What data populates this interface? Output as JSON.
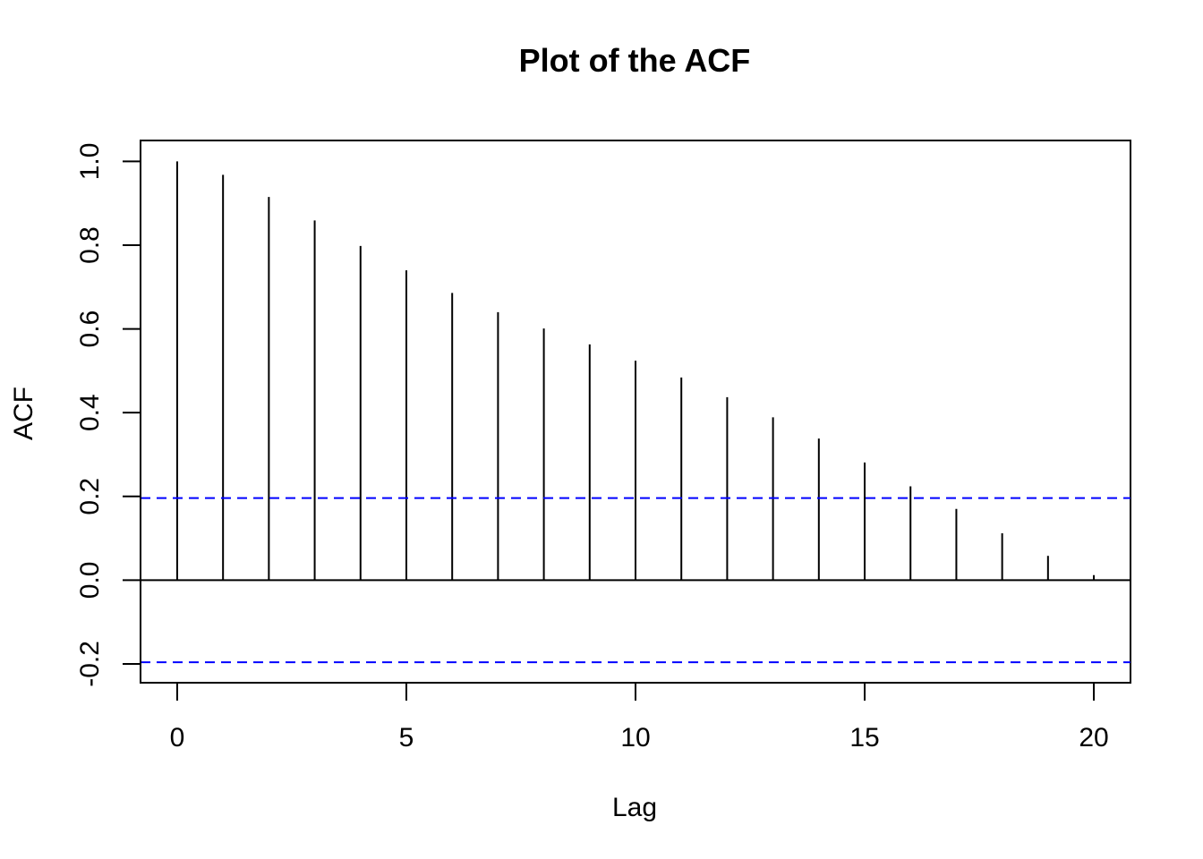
{
  "chart_data": {
    "type": "bar",
    "title": "Plot of the ACF",
    "xlabel": "Lag",
    "ylabel": "ACF",
    "x": [
      0,
      1,
      2,
      3,
      4,
      5,
      6,
      7,
      8,
      9,
      10,
      11,
      12,
      13,
      14,
      15,
      16,
      17,
      18,
      19,
      20
    ],
    "values": [
      1.0,
      0.968,
      0.915,
      0.859,
      0.798,
      0.74,
      0.686,
      0.64,
      0.601,
      0.563,
      0.524,
      0.484,
      0.437,
      0.389,
      0.338,
      0.281,
      0.224,
      0.17,
      0.112,
      0.058,
      0.012
    ],
    "xlim": [
      -0.8,
      20.8
    ],
    "ylim": [
      -0.245,
      1.05
    ],
    "xticks": [
      0,
      5,
      10,
      15,
      20
    ],
    "yticks": [
      -0.2,
      0.0,
      0.2,
      0.4,
      0.6,
      0.8,
      1.0
    ],
    "xtick_labels": [
      "0",
      "5",
      "10",
      "15",
      "20"
    ],
    "ytick_labels": [
      "-0.2",
      "0.0",
      "0.2",
      "0.4",
      "0.6",
      "0.8",
      "1.0"
    ],
    "confidence_bounds": [
      0.196,
      -0.196
    ],
    "zero_line": 0.0,
    "colors": {
      "bars": "#000000",
      "confidence": "#0000ff"
    },
    "grid": false,
    "legend": "none"
  }
}
